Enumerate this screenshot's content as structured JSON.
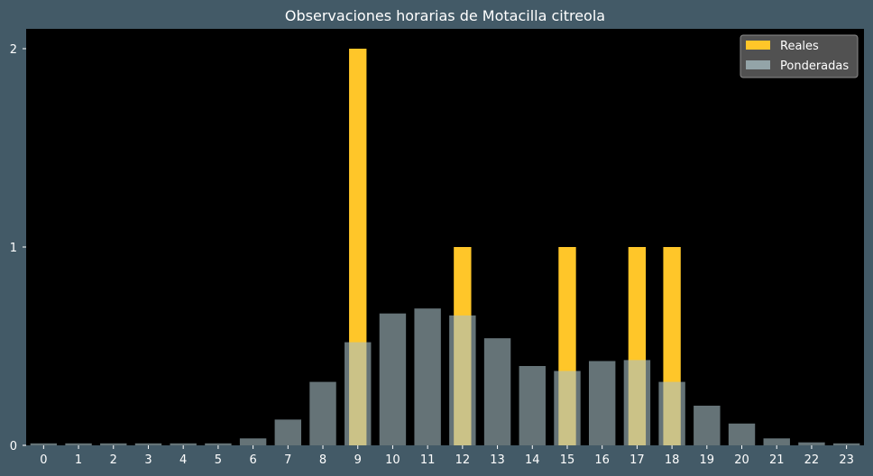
{
  "chart_data": {
    "type": "bar",
    "title": "Observaciones horarias de Motacilla citreola",
    "xlabel": "",
    "ylabel": "",
    "categories": [
      "0",
      "1",
      "2",
      "3",
      "4",
      "5",
      "6",
      "7",
      "8",
      "9",
      "10",
      "11",
      "12",
      "13",
      "14",
      "15",
      "16",
      "17",
      "18",
      "19",
      "20",
      "21",
      "22",
      "23"
    ],
    "ylim": [
      0,
      2.1
    ],
    "yticks": [
      0,
      1,
      2
    ],
    "grid": false,
    "legend_position": "top-right",
    "series": [
      {
        "name": "Reales",
        "color": "#ffc629",
        "values": [
          0,
          0,
          0,
          0,
          0,
          0,
          0,
          0,
          0,
          2,
          0,
          0,
          1,
          0,
          0,
          1,
          0,
          1,
          1,
          0,
          0,
          0,
          0,
          0
        ]
      },
      {
        "name": "Ponderadas",
        "color": "#a9c0c6",
        "opacity": 0.6,
        "values": [
          0.01,
          0.01,
          0.01,
          0.01,
          0.01,
          0.01,
          0.035,
          0.13,
          0.32,
          0.52,
          0.665,
          0.69,
          0.655,
          0.54,
          0.4,
          0.375,
          0.425,
          0.43,
          0.32,
          0.2,
          0.11,
          0.035,
          0.015,
          0.01
        ]
      }
    ]
  },
  "colors": {
    "figure_background": "#435a67",
    "plot_background": "#000000",
    "text": "#ffffff",
    "legend_background": "#5a5a5a"
  }
}
